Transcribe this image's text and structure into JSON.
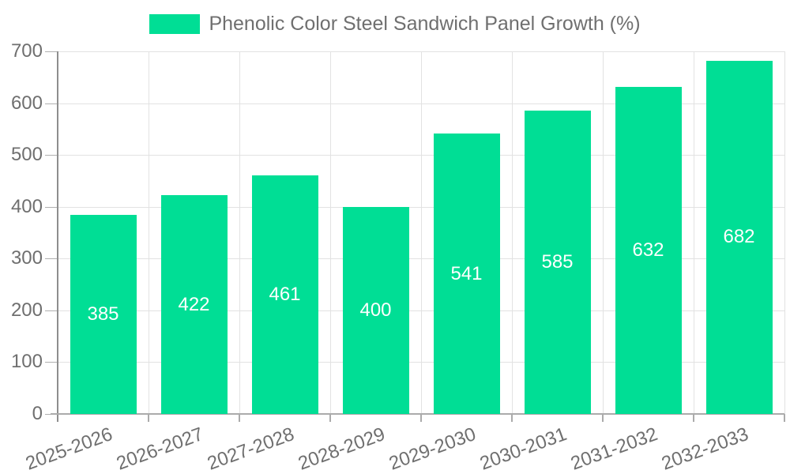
{
  "legend": {
    "label": "Phenolic Color Steel Sandwich Panel Growth (%)"
  },
  "chart_data": {
    "type": "bar",
    "title": "Phenolic Color Steel Sandwich Panel Growth (%)",
    "categories": [
      "2025-2026",
      "2026-2027",
      "2027-2028",
      "2028-2029",
      "2029-2030",
      "2030-2031",
      "2031-2032",
      "2032-2033"
    ],
    "series": [
      {
        "name": "Phenolic Color Steel Sandwich Panel Growth (%)",
        "values": [
          385,
          422,
          461,
          400,
          541,
          585,
          632,
          682
        ]
      }
    ],
    "values": [
      385,
      422,
      461,
      400,
      541,
      585,
      632,
      682
    ],
    "value_labels_shown": true,
    "xlabel": "",
    "ylabel": "",
    "ylim": [
      0,
      700
    ],
    "yticks": [
      0,
      100,
      200,
      300,
      400,
      500,
      600,
      700
    ],
    "grid": true,
    "legend_position": "top-center",
    "colors": {
      "bar": "#00de95",
      "value_label": "#ffffff",
      "axis_text": "#6f6f6f",
      "gridline": "#e2e2e2",
      "y_axis_line": "#8e8e8e",
      "x_axis_line": "#ababab"
    }
  }
}
